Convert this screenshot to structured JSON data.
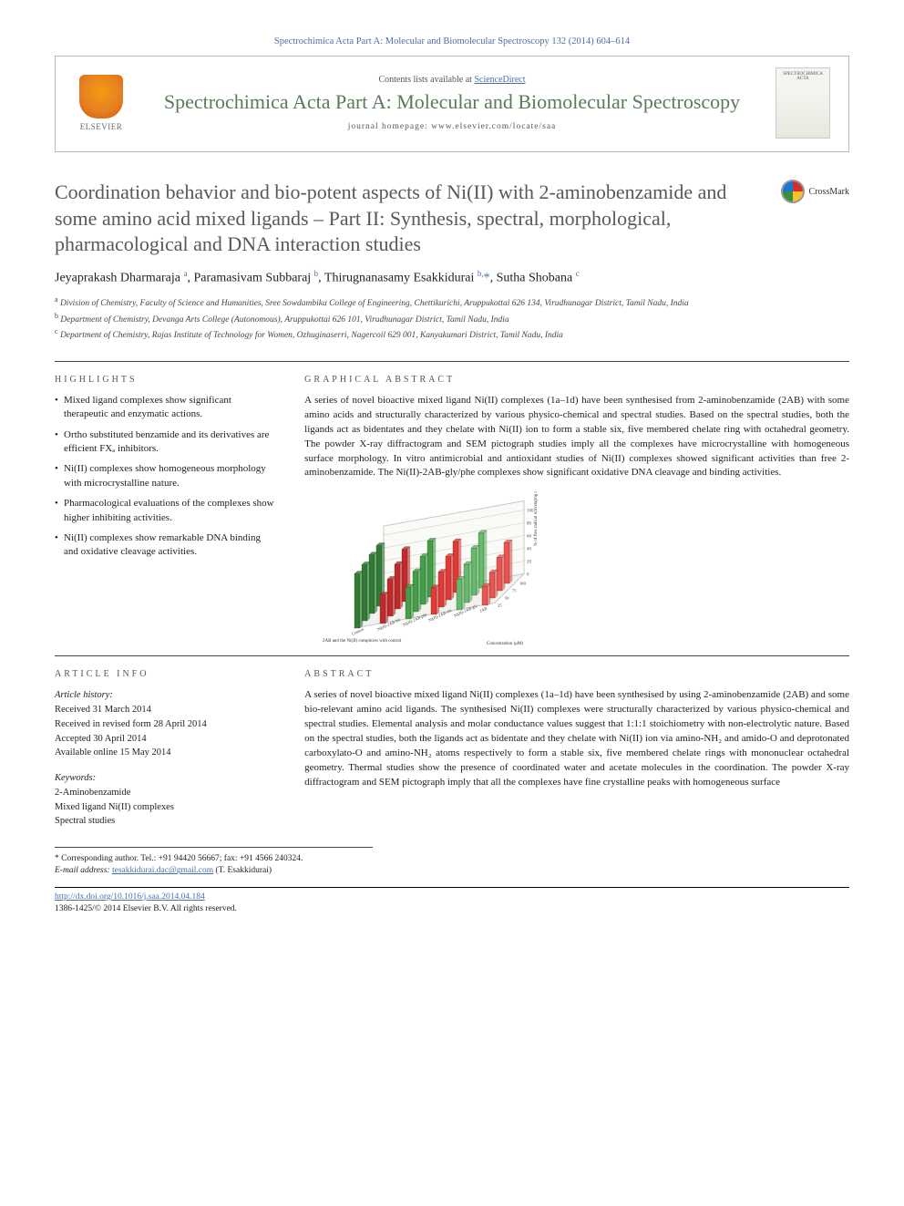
{
  "header": {
    "citation": "Spectrochimica Acta Part A: Molecular and Biomolecular Spectroscopy 132 (2014) 604–614",
    "contents_prefix": "Contents lists available at ",
    "contents_link": "ScienceDirect",
    "journal_name": "Spectrochimica Acta Part A: Molecular and Biomolecular Spectroscopy",
    "homepage_prefix": "journal homepage: ",
    "homepage_url": "www.elsevier.com/locate/saa",
    "elsevier_label": "ELSEVIER",
    "cover_label": "SPECTROCHIMICA ACTA"
  },
  "title": "Coordination behavior and bio-potent aspects of Ni(II) with 2-aminobenzamide and some amino acid mixed ligands – Part II: Synthesis, spectral, morphological, pharmacological and DNA interaction studies",
  "crossmark_label": "CrossMark",
  "authors_html": "Jeyaprakash Dharmaraja <sup>a</sup>, Paramasivam Subbaraj <sup>b</sup>, Thirugnanasamy Esakkidurai <sup>b,</sup><span class='corr-star'>*</span>, Sutha Shobana <sup>c</sup>",
  "affiliations": [
    "a Division of Chemistry, Faculty of Science and Humanities, Sree Sowdambika College of Engineering, Chettikurichi, Aruppukottai 626 134, Virudhunagar District, Tamil Nadu, India",
    "b Department of Chemistry, Devanga Arts College (Autonomous), Aruppukottai 626 101, Virudhunagar District, Tamil Nadu, India",
    "c Department of Chemistry, Rajas Institute of Technology for Women, Ozhuginaserri, Nagercoil 629 001, Kanyakumari District, Tamil Nadu, India"
  ],
  "highlights": {
    "heading": "HIGHLIGHTS",
    "items": [
      "Mixed ligand complexes show significant therapeutic and enzymatic actions.",
      "Ortho substituted benzamide and its derivatives are efficient FXₐ inhibitors.",
      "Ni(II) complexes show homogeneous morphology with microcrystalline nature.",
      "Pharmacological evaluations of the complexes show higher inhibiting activities.",
      "Ni(II) complexes show remarkable DNA binding and oxidative cleavage activities."
    ]
  },
  "graphical_abstract": {
    "heading": "GRAPHICAL ABSTRACT",
    "text": "A series of novel bioactive mixed ligand Ni(II) complexes (1a–1d) have been synthesised from 2-aminobenzamide (2AB) with some amino acids and structurally characterized by various physico-chemical and spectral studies. Based on the spectral studies, both the ligands act as bidentates and they chelate with Ni(II) ion to form a stable six, five membered chelate ring with octahedral geometry. The powder X-ray diffractogram and SEM pictograph studies imply all the complexes have microcrystalline with homogeneous surface morphology. In vitro antimicrobial and antioxidant studies of Ni(II) complexes showed significant activities than free 2-aminobenzamide. The Ni(II)-2AB-gly/phe complexes show significant oxidative DNA cleavage and binding activities.",
    "chart": {
      "type": "bar3d",
      "x_labels": [
        "Control",
        "Ni(II)-2AB-his",
        "Ni(II)-2AB-phe",
        "Ni(II)-2AB-ala",
        "Ni(II)-2AB-gly",
        "2AB"
      ],
      "z_labels": [
        "25",
        "50",
        "75",
        "100"
      ],
      "y_axis_label": "% of free radical scavenging activity (%)",
      "x_axis_label": "2AB and the Ni(II) complexes with control",
      "z_axis_label": "Concentration (μM)",
      "ylim": [
        0,
        100
      ],
      "series_colors": [
        "#2e7d32",
        "#c62828",
        "#43a047",
        "#e53935",
        "#66bb6a",
        "#ef5350"
      ],
      "grid_color": "#c8c8c8",
      "background_fill": "#f2f2ee",
      "title_fontsize": 8,
      "approx_values": {
        "Control": [
          85,
          88,
          92,
          95
        ],
        "Ni(II)-2AB-his": [
          45,
          58,
          70,
          82
        ],
        "Ni(II)-2AB-phe": [
          50,
          63,
          75,
          88
        ],
        "Ni(II)-2AB-ala": [
          42,
          55,
          68,
          80
        ],
        "Ni(II)-2AB-gly": [
          48,
          60,
          74,
          86
        ],
        "2AB": [
          30,
          40,
          52,
          64
        ]
      }
    }
  },
  "article_info": {
    "heading": "ARTICLE INFO",
    "history_label": "Article history:",
    "history": [
      "Received 31 March 2014",
      "Received in revised form 28 April 2014",
      "Accepted 30 April 2014",
      "Available online 15 May 2014"
    ],
    "keywords_label": "Keywords:",
    "keywords": [
      "2-Aminobenzamide",
      "Mixed ligand Ni(II) complexes",
      "Spectral studies"
    ]
  },
  "abstract": {
    "heading": "ABSTRACT",
    "text": "A series of novel bioactive mixed ligand Ni(II) complexes (1a–1d) have been synthesised by using 2-aminobenzamide (2AB) and some bio-relevant amino acid ligands. The synthesised Ni(II) complexes were structurally characterized by various physico-chemical and spectral studies. Elemental analysis and molar conductance values suggest that 1:1:1 stoichiometry with non-electrolytic nature. Based on the spectral studies, both the ligands act as bidentate and they chelate with Ni(II) ion via amino-NH₂ and amido-O and deprotonated carboxylato-O and amino-NH₂ atoms respectively to form a stable six, five membered chelate rings with mononuclear octahedral geometry. Thermal studies show the presence of coordinated water and acetate molecules in the coordination. The powder X-ray diffractogram and SEM pictograph imply that all the complexes have fine crystalline peaks with homogeneous surface"
  },
  "footnotes": {
    "corr_label": "* Corresponding author. Tel.: +91 94420 56667; fax: +91 4566 240324.",
    "email_label": "E-mail address:",
    "email": "tesakkidurai.dac@gmail.com",
    "email_person": "(T. Esakkidurai)"
  },
  "copyright": {
    "doi_url": "http://dx.doi.org/10.1016/j.saa.2014.04.184",
    "line2": "1386-1425/© 2014 Elsevier B.V. All rights reserved."
  }
}
